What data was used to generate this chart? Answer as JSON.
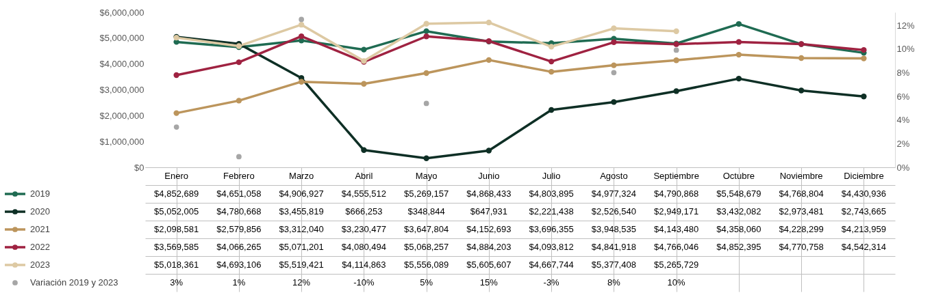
{
  "chart_data": {
    "type": "line",
    "categories": [
      "Enero",
      "Febrero",
      "Marzo",
      "Abril",
      "Mayo",
      "Junio",
      "Julio",
      "Agosto",
      "Septiembre",
      "Octubre",
      "Noviembre",
      "Diciembre"
    ],
    "ylim": [
      0,
      6000000
    ],
    "yticks": [
      {
        "value": 0,
        "label": "$0"
      },
      {
        "value": 1000000,
        "label": "$1,000,000"
      },
      {
        "value": 2000000,
        "label": "$2,000,000"
      },
      {
        "value": 3000000,
        "label": "$3,000,000"
      },
      {
        "value": 4000000,
        "label": "$4,000,000"
      },
      {
        "value": 5000000,
        "label": "$5,000,000"
      },
      {
        "value": 6000000,
        "label": "$6,000,000"
      }
    ],
    "y2lim": [
      0,
      13.1
    ],
    "y2ticks": [
      {
        "value": 0,
        "label": "0%"
      },
      {
        "value": 2,
        "label": "2%"
      },
      {
        "value": 4,
        "label": "4%"
      },
      {
        "value": 6,
        "label": "6%"
      },
      {
        "value": 8,
        "label": "8%"
      },
      {
        "value": 10,
        "label": "10%"
      },
      {
        "value": 12,
        "label": "12%"
      }
    ],
    "marker": "circle",
    "legend": "bottom",
    "series": [
      {
        "name": "2019",
        "color": "#1f6b52",
        "values": [
          4852689,
          4651058,
          4906927,
          4555512,
          5269157,
          4868433,
          4803895,
          4977324,
          4790868,
          5548679,
          4768804,
          4430936
        ],
        "value_labels": [
          "$4,852,689",
          "$4,651,058",
          "$4,906,927",
          "$4,555,512",
          "$5,269,157",
          "$4,868,433",
          "$4,803,895",
          "$4,977,324",
          "$4,790,868",
          "$5,548,679",
          "$4,768,804",
          "$4,430,936"
        ]
      },
      {
        "name": "2020",
        "color": "#0e2f25",
        "values": [
          5052005,
          4780668,
          3455819,
          666253,
          348844,
          647931,
          2221438,
          2526540,
          2949171,
          3432082,
          2973481,
          2743665
        ],
        "value_labels": [
          "$5,052,005",
          "$4,780,668",
          "$3,455,819",
          "$666,253",
          "$348,844",
          "$647,931",
          "$2,221,438",
          "$2,526,540",
          "$2,949,171",
          "$3,432,082",
          "$2,973,481",
          "$2,743,665"
        ]
      },
      {
        "name": "2021",
        "color": "#bc955c",
        "values": [
          2098581,
          2579856,
          3312040,
          3230477,
          3647804,
          4152693,
          3696355,
          3948535,
          4143480,
          4358060,
          4228299,
          4213959
        ],
        "value_labels": [
          "$2,098,581",
          "$2,579,856",
          "$3,312,040",
          "$3,230,477",
          "$3,647,804",
          "$4,152,693",
          "$3,696,355",
          "$3,948,535",
          "$4,143,480",
          "$4,358,060",
          "$4,228,299",
          "$4,213,959"
        ]
      },
      {
        "name": "2022",
        "color": "#9f2241",
        "values": [
          3569585,
          4066265,
          5071201,
          4080494,
          5068257,
          4884203,
          4093812,
          4841918,
          4766046,
          4852395,
          4770758,
          4542314
        ],
        "value_labels": [
          "$3,569,585",
          "$4,066,265",
          "$5,071,201",
          "$4,080,494",
          "$5,068,257",
          "$4,884,203",
          "$4,093,812",
          "$4,841,918",
          "$4,766,046",
          "$4,852,395",
          "$4,770,758",
          "$4,542,314"
        ]
      },
      {
        "name": "2023",
        "color": "#ddc9a3",
        "values": [
          5018361,
          4693106,
          5519421,
          4114863,
          5556089,
          5605607,
          4667744,
          5377408,
          5265729,
          null,
          null,
          null
        ],
        "value_labels": [
          "$5,018,361",
          "$4,693,106",
          "$5,519,421",
          "$4,114,863",
          "$5,556,089",
          "$5,605,607",
          "$4,667,744",
          "$5,377,408",
          "$5,265,729",
          null,
          null,
          null
        ]
      },
      {
        "name": "Variación 2019 y 2023",
        "type": "scatter",
        "axis": "y2",
        "color": "#a6a6a6",
        "values": [
          3.4,
          0.9,
          12.5,
          null,
          5.4,
          null,
          null,
          8.0,
          9.9,
          null,
          null,
          null
        ],
        "value_labels": [
          "3%",
          "1%",
          "12%",
          "-10%",
          "5%",
          "15%",
          "-3%",
          "8%",
          "10%",
          null,
          null,
          null
        ]
      }
    ]
  }
}
